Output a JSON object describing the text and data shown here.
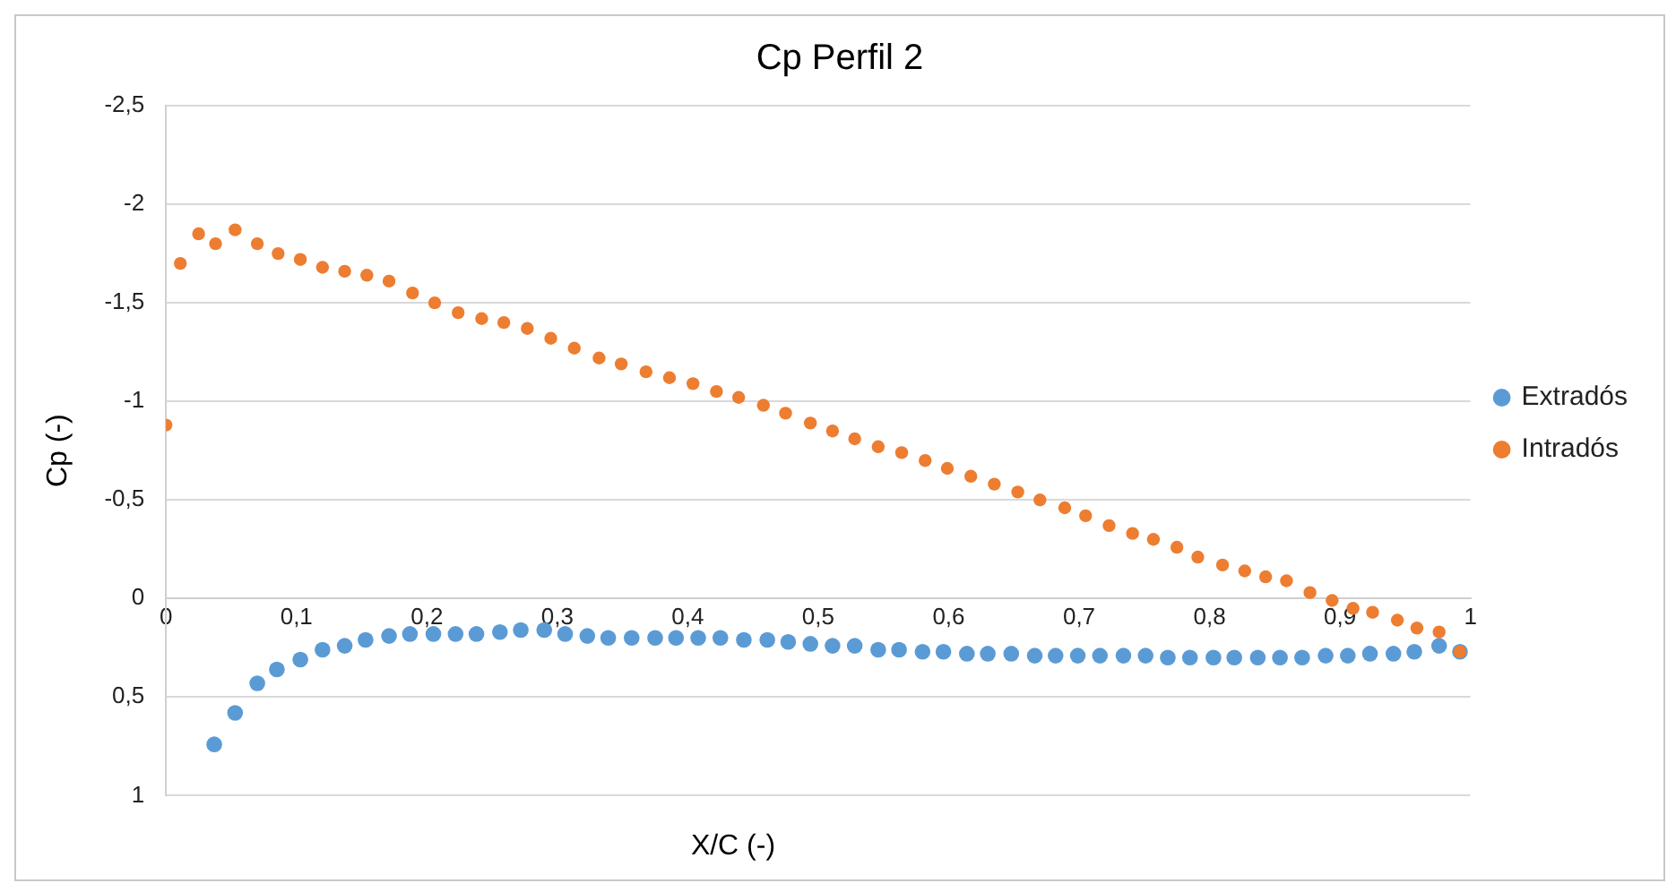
{
  "chart_data": {
    "type": "scatter",
    "title": "Cp Perfil 2",
    "xlabel": "X/C (-)",
    "ylabel": "Cp (-)",
    "xlim": [
      0,
      1
    ],
    "xticks": [
      0,
      {
        "value": 0.1,
        "label": "0,1"
      },
      {
        "value": 0.2,
        "label": "0,2"
      },
      {
        "value": 0.3,
        "label": "0,3"
      },
      {
        "value": 0.4,
        "label": "0,4"
      },
      {
        "value": 0.5,
        "label": "0,5"
      },
      {
        "value": 0.6,
        "label": "0,6"
      },
      {
        "value": 0.7,
        "label": "0,7"
      },
      {
        "value": 0.8,
        "label": "0,8"
      },
      {
        "value": 0.9,
        "label": "0,9"
      },
      1
    ],
    "ylim": [
      1,
      -2.5
    ],
    "yticks": [
      1,
      {
        "value": 0.5,
        "label": "0,5"
      },
      0,
      {
        "value": -0.5,
        "label": "-0,5"
      },
      -1,
      {
        "value": -1.5,
        "label": "-1,5"
      },
      -2,
      {
        "value": -2.5,
        "label": "-2,5"
      }
    ],
    "grid": "y",
    "legend": "right",
    "marker": "circle",
    "series": [
      {
        "name": "Extradós",
        "color": "#5b9bd5",
        "x": [
          0.037,
          0.053,
          0.07,
          0.085,
          0.103,
          0.12,
          0.137,
          0.153,
          0.171,
          0.187,
          0.205,
          0.222,
          0.238,
          0.256,
          0.272,
          0.29,
          0.306,
          0.323,
          0.339,
          0.357,
          0.375,
          0.391,
          0.408,
          0.425,
          0.443,
          0.461,
          0.477,
          0.494,
          0.511,
          0.528,
          0.546,
          0.562,
          0.58,
          0.596,
          0.614,
          0.63,
          0.648,
          0.666,
          0.682,
          0.699,
          0.716,
          0.734,
          0.751,
          0.768,
          0.785,
          0.803,
          0.819,
          0.837,
          0.854,
          0.871,
          0.889,
          0.906,
          0.923,
          0.941,
          0.957,
          0.976,
          0.992
        ],
        "values": [
          0.74,
          0.58,
          0.43,
          0.36,
          0.31,
          0.26,
          0.24,
          0.21,
          0.19,
          0.18,
          0.18,
          0.18,
          0.18,
          0.17,
          0.16,
          0.16,
          0.18,
          0.19,
          0.2,
          0.2,
          0.2,
          0.2,
          0.2,
          0.2,
          0.21,
          0.21,
          0.22,
          0.23,
          0.24,
          0.24,
          0.26,
          0.26,
          0.27,
          0.27,
          0.28,
          0.28,
          0.28,
          0.29,
          0.29,
          0.29,
          0.29,
          0.29,
          0.29,
          0.3,
          0.3,
          0.3,
          0.3,
          0.3,
          0.3,
          0.3,
          0.29,
          0.29,
          0.28,
          0.28,
          0.27,
          0.24,
          0.27
        ]
      },
      {
        "name": "Intradós",
        "color": "#ed7d31",
        "x": [
          0,
          0.011,
          0.025,
          0.038,
          0.053,
          0.07,
          0.086,
          0.103,
          0.12,
          0.137,
          0.154,
          0.171,
          0.189,
          0.206,
          0.224,
          0.242,
          0.259,
          0.277,
          0.295,
          0.313,
          0.332,
          0.349,
          0.368,
          0.386,
          0.404,
          0.422,
          0.439,
          0.458,
          0.475,
          0.494,
          0.511,
          0.528,
          0.546,
          0.564,
          0.582,
          0.599,
          0.617,
          0.635,
          0.653,
          0.67,
          0.689,
          0.705,
          0.723,
          0.741,
          0.757,
          0.775,
          0.791,
          0.81,
          0.827,
          0.843,
          0.859,
          0.877,
          0.894,
          0.91,
          0.925,
          0.944,
          0.959,
          0.976,
          0.992
        ],
        "values": [
          -0.88,
          -1.7,
          -1.85,
          -1.8,
          -1.87,
          -1.8,
          -1.75,
          -1.72,
          -1.68,
          -1.66,
          -1.64,
          -1.61,
          -1.55,
          -1.5,
          -1.45,
          -1.42,
          -1.4,
          -1.37,
          -1.32,
          -1.27,
          -1.22,
          -1.19,
          -1.15,
          -1.12,
          -1.09,
          -1.05,
          -1.02,
          -0.98,
          -0.94,
          -0.89,
          -0.85,
          -0.81,
          -0.77,
          -0.74,
          -0.7,
          -0.66,
          -0.62,
          -0.58,
          -0.54,
          -0.5,
          -0.46,
          -0.42,
          -0.37,
          -0.33,
          -0.3,
          -0.26,
          -0.21,
          -0.17,
          -0.14,
          -0.11,
          -0.09,
          -0.03,
          0.01,
          0.05,
          0.07,
          0.11,
          0.15,
          0.17,
          0.27
        ]
      }
    ]
  }
}
